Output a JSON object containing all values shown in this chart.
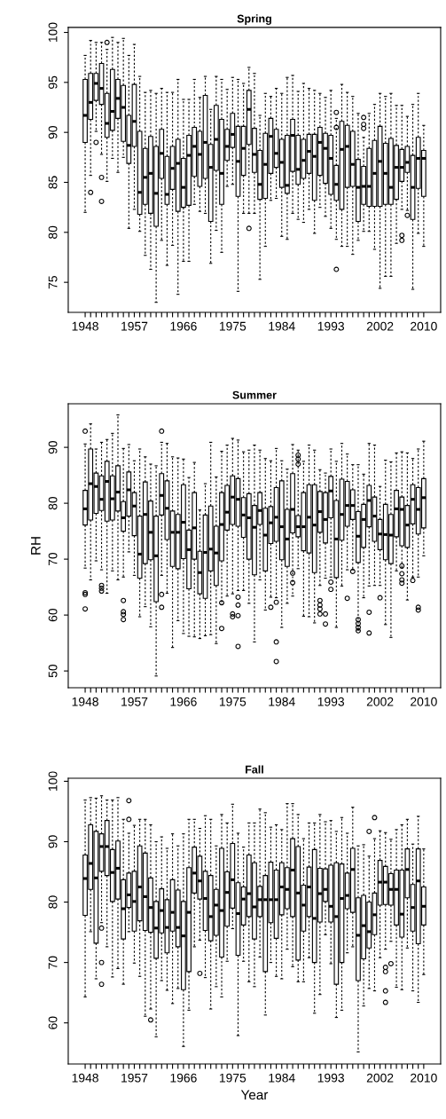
{
  "chart_data": [
    {
      "type": "box",
      "title": "Spring",
      "ylim": [
        72,
        100.5
      ],
      "yticks": [
        75,
        80,
        85,
        90,
        95,
        100
      ],
      "categories": [
        "1948",
        null,
        null,
        null,
        null,
        null,
        null,
        null,
        null,
        "1957",
        null,
        null,
        null,
        null,
        null,
        null,
        null,
        null,
        "1966",
        null,
        null,
        null,
        null,
        null,
        null,
        null,
        null,
        "1975",
        null,
        null,
        null,
        null,
        null,
        null,
        null,
        null,
        "1984",
        null,
        null,
        null,
        null,
        null,
        null,
        null,
        null,
        "1993",
        null,
        null,
        null,
        null,
        null,
        null,
        null,
        null,
        "2002",
        null,
        null,
        null,
        null,
        null,
        null,
        null,
        "2010"
      ],
      "boxes": [
        {
          "low": 82.0,
          "q1": 89.0,
          "median": 91.7,
          "q3": 95.3,
          "high": 97.7
        },
        {
          "low": 85.7,
          "q1": 91.3,
          "median": 93.0,
          "q3": 95.9,
          "high": 99.2,
          "outliers": [
            84.0
          ]
        },
        {
          "low": 90.1,
          "q1": 93.2,
          "median": 94.9,
          "q3": 95.9,
          "high": 99.0,
          "outliers": [
            89.0
          ]
        },
        {
          "low": 87.8,
          "q1": 92.8,
          "median": 94.4,
          "q3": 96.9,
          "high": 99.0,
          "outliers": [
            85.5,
            83.1
          ]
        },
        {
          "low": 85.1,
          "q1": 89.5,
          "median": 90.9,
          "q3": 93.9,
          "high": 98.3,
          "outliers": [
            99.0
          ]
        },
        {
          "low": 87.4,
          "q1": 90.2,
          "median": 92.1,
          "q3": 96.3,
          "high": 99.5
        },
        {
          "low": 86.0,
          "q1": 91.4,
          "median": 93.4,
          "q3": 95.3,
          "high": 99.0
        },
        {
          "low": 87.5,
          "q1": 89.1,
          "median": 92.5,
          "q3": 94.7,
          "high": 99.4
        },
        {
          "low": 80.4,
          "q1": 86.9,
          "median": 88.7,
          "q3": 91.7,
          "high": 97.7
        },
        {
          "low": 82.3,
          "q1": 88.6,
          "median": 91.1,
          "q3": 94.8,
          "high": 98.8
        },
        {
          "low": 80.1,
          "q1": 81.8,
          "median": 84.0,
          "q3": 90.1,
          "high": 95.6
        },
        {
          "low": 77.7,
          "q1": 82.8,
          "median": 85.5,
          "q3": 88.4,
          "high": 94.0
        },
        {
          "low": 76.3,
          "q1": 81.9,
          "median": 85.9,
          "q3": 89.6,
          "high": 94.2
        },
        {
          "low": 73.0,
          "q1": 80.6,
          "median": 83.9,
          "q3": 88.6,
          "high": 93.9
        },
        {
          "low": 79.2,
          "q1": 85.4,
          "median": 87.9,
          "q3": 90.3,
          "high": 94.4
        },
        {
          "low": 76.7,
          "q1": 82.8,
          "median": 83.8,
          "q3": 87.6,
          "high": 94.0
        },
        {
          "low": 78.7,
          "q1": 84.3,
          "median": 86.4,
          "q3": 88.6,
          "high": 94.0
        },
        {
          "low": 73.8,
          "q1": 82.1,
          "median": 86.9,
          "q3": 89.3,
          "high": 95.3
        },
        {
          "low": 77.1,
          "q1": 82.5,
          "median": 84.5,
          "q3": 87.4,
          "high": 93.3
        },
        {
          "low": 77.1,
          "q1": 82.7,
          "median": 87.7,
          "q3": 89.7,
          "high": 93.3
        },
        {
          "low": 82.8,
          "q1": 85.6,
          "median": 88.6,
          "q3": 90.5,
          "high": 95.3
        },
        {
          "low": 82.1,
          "q1": 84.6,
          "median": 87.8,
          "q3": 90.1,
          "high": 93.5
        },
        {
          "low": 81.9,
          "q1": 85.4,
          "median": 89.0,
          "q3": 93.7,
          "high": 95.6
        },
        {
          "low": 76.9,
          "q1": 81.1,
          "median": 86.5,
          "q3": 88.8,
          "high": 92.3
        },
        {
          "low": 80.2,
          "q1": 86.2,
          "median": 89.3,
          "q3": 92.7,
          "high": 95.6
        },
        {
          "low": 78.0,
          "q1": 82.8,
          "median": 85.9,
          "q3": 91.3,
          "high": 95.3
        },
        {
          "low": 84.6,
          "q1": 87.2,
          "median": 88.6,
          "q3": 90.3,
          "high": 94.3
        },
        {
          "low": 84.8,
          "q1": 88.5,
          "median": 89.8,
          "q3": 91.9,
          "high": 95.5
        },
        {
          "low": 74.1,
          "q1": 83.6,
          "median": 87.1,
          "q3": 90.6,
          "high": 95.3
        },
        {
          "low": 81.9,
          "q1": 85.7,
          "median": 88.4,
          "q3": 90.6,
          "high": 94.9
        },
        {
          "low": 81.9,
          "q1": 88.8,
          "median": 92.3,
          "q3": 94.2,
          "high": 96.5,
          "outliers": [
            80.4
          ]
        },
        {
          "low": 81.9,
          "q1": 86.0,
          "median": 87.8,
          "q3": 90.4,
          "high": 95.9
        },
        {
          "low": 75.3,
          "q1": 83.3,
          "median": 84.8,
          "q3": 88.2,
          "high": 91.7
        },
        {
          "low": 78.6,
          "q1": 83.4,
          "median": 86.8,
          "q3": 89.9,
          "high": 93.9
        },
        {
          "low": 83.2,
          "q1": 85.9,
          "median": 89.6,
          "q3": 91.4,
          "high": 93.6
        },
        {
          "low": 83.4,
          "q1": 86.5,
          "median": 87.9,
          "q3": 90.3,
          "high": 94.4
        },
        {
          "low": 79.6,
          "q1": 84.5,
          "median": 87.0,
          "q3": 89.3,
          "high": 93.9
        },
        {
          "low": 79.3,
          "q1": 83.9,
          "median": 84.7,
          "q3": 89.7,
          "high": 95.5
        },
        {
          "low": 81.9,
          "q1": 86.1,
          "median": 89.7,
          "q3": 91.3,
          "high": 95.7
        },
        {
          "low": 81.3,
          "q1": 84.8,
          "median": 86.3,
          "q3": 89.7,
          "high": 94.1
        },
        {
          "low": 81.0,
          "q1": 85.4,
          "median": 87.2,
          "q3": 89.3,
          "high": 94.9
        },
        {
          "low": 82.3,
          "q1": 85.9,
          "median": 88.1,
          "q3": 89.8,
          "high": 94.4
        },
        {
          "low": 79.9,
          "q1": 83.2,
          "median": 87.6,
          "q3": 89.8,
          "high": 94.2
        },
        {
          "low": 82.5,
          "q1": 85.7,
          "median": 89.0,
          "q3": 90.5,
          "high": 93.9
        },
        {
          "low": 81.6,
          "q1": 84.9,
          "median": 88.4,
          "q3": 89.9,
          "high": 93.5
        },
        {
          "low": 80.4,
          "q1": 83.8,
          "median": 87.4,
          "q3": 89.7,
          "high": 94.2
        },
        {
          "low": 79.3,
          "q1": 83.2,
          "median": 84.8,
          "q3": 86.7,
          "high": 91.4,
          "outliers": [
            92.0,
            90.5,
            76.3
          ]
        },
        {
          "low": 78.6,
          "q1": 82.3,
          "median": 88.3,
          "q3": 91.1,
          "high": 94.8
        },
        {
          "low": 78.6,
          "q1": 84.5,
          "median": 88.6,
          "q3": 90.7,
          "high": 94.0
        },
        {
          "low": 77.8,
          "q1": 84.6,
          "median": 86.8,
          "q3": 90.1,
          "high": 93.6
        },
        {
          "low": 79.2,
          "q1": 81.1,
          "median": 84.5,
          "q3": 87.3,
          "high": 91.9
        },
        {
          "low": 80.1,
          "q1": 82.8,
          "median": 84.6,
          "q3": 86.6,
          "high": 89.5,
          "outliers": [
            91.5,
            90.8,
            90.4
          ]
        },
        {
          "low": 80.1,
          "q1": 82.6,
          "median": 84.6,
          "q3": 88.4,
          "high": 91.9
        },
        {
          "low": 78.3,
          "q1": 82.6,
          "median": 85.9,
          "q3": 89.2,
          "high": 92.8
        },
        {
          "low": 74.4,
          "q1": 82.6,
          "median": 87.1,
          "q3": 90.6,
          "high": 93.9
        },
        {
          "low": 75.6,
          "q1": 82.8,
          "median": 85.9,
          "q3": 88.9,
          "high": 93.6
        },
        {
          "low": 75.6,
          "q1": 82.8,
          "median": 84.5,
          "q3": 89.4,
          "high": 93.9
        },
        {
          "low": 78.9,
          "q1": 83.3,
          "median": 86.5,
          "q3": 88.7,
          "high": 92.7
        },
        {
          "low": 82.3,
          "q1": 85.1,
          "median": 86.5,
          "q3": 88.3,
          "high": 92.7,
          "outliers": [
            79.7,
            79.2
          ]
        },
        {
          "low": 82.2,
          "q1": 86.0,
          "median": 87.0,
          "q3": 88.6,
          "high": 91.6,
          "outliers": [
            81.7
          ]
        },
        {
          "low": 74.3,
          "q1": 81.3,
          "median": 84.5,
          "q3": 87.7,
          "high": 92.8
        },
        {
          "low": 79.9,
          "q1": 84.4,
          "median": 87.4,
          "q3": 89.5,
          "high": 93.9
        },
        {
          "low": 78.6,
          "q1": 83.6,
          "median": 87.4,
          "q3": 88.2,
          "high": 90.7
        }
      ]
    },
    {
      "type": "box",
      "title": "Summer",
      "ylabel": "RH",
      "ylim": [
        47,
        97.8
      ],
      "yticks": [
        50,
        60,
        70,
        80,
        90
      ],
      "categories": [
        "1948",
        null,
        null,
        null,
        null,
        null,
        null,
        null,
        null,
        "1957",
        null,
        null,
        null,
        null,
        null,
        null,
        null,
        null,
        "1966",
        null,
        null,
        null,
        null,
        null,
        null,
        null,
        null,
        "1975",
        null,
        null,
        null,
        null,
        null,
        null,
        null,
        null,
        "1984",
        null,
        null,
        null,
        null,
        null,
        null,
        null,
        null,
        "1993",
        null,
        null,
        null,
        null,
        null,
        null,
        null,
        null,
        "2002",
        null,
        null,
        null,
        null,
        null,
        null,
        null,
        "2010"
      ],
      "boxes": [
        {
          "low": 68.4,
          "q1": 76.1,
          "median": 79.0,
          "q3": 82.3,
          "high": 90.6,
          "outliers": [
            92.9,
            64.0,
            63.7,
            61.1
          ]
        },
        {
          "low": 66.3,
          "q1": 77.0,
          "median": 83.5,
          "q3": 89.7,
          "high": 94.2
        },
        {
          "low": 69.7,
          "q1": 78.2,
          "median": 83.0,
          "q3": 85.4,
          "high": 89.7
        },
        {
          "low": 68.1,
          "q1": 78.7,
          "median": 80.7,
          "q3": 84.9,
          "high": 90.9,
          "outliers": [
            65.3,
            64.8,
            64.3
          ]
        },
        {
          "low": 63.9,
          "q1": 76.8,
          "median": 83.9,
          "q3": 87.5,
          "high": 91.4
        },
        {
          "low": 67.9,
          "q1": 77.0,
          "median": 80.8,
          "q3": 84.9,
          "high": 92.5
        },
        {
          "low": 66.3,
          "q1": 78.6,
          "median": 82.0,
          "q3": 86.7,
          "high": 95.8
        },
        {
          "low": 66.8,
          "q1": 75.0,
          "median": 77.4,
          "q3": 80.3,
          "high": 89.8,
          "outliers": [
            62.6,
            60.6,
            60.1,
            59.2
          ]
        },
        {
          "low": 71.3,
          "q1": 77.7,
          "median": 82.4,
          "q3": 85.6,
          "high": 90.5
        },
        {
          "low": 67.1,
          "q1": 74.2,
          "median": 79.5,
          "q3": 81.9,
          "high": 87.6
        },
        {
          "low": 59.7,
          "q1": 66.6,
          "median": 70.9,
          "q3": 77.7,
          "high": 89.7
        },
        {
          "low": 61.5,
          "q1": 69.2,
          "median": 78.0,
          "q3": 83.8,
          "high": 88.3
        },
        {
          "low": 57.9,
          "q1": 69.9,
          "median": 74.8,
          "q3": 80.4,
          "high": 87.0
        },
        {
          "low": 49.1,
          "q1": 62.4,
          "median": 70.6,
          "q3": 77.7,
          "high": 86.7
        },
        {
          "low": 67.1,
          "q1": 77.9,
          "median": 81.4,
          "q3": 85.3,
          "high": 90.9,
          "outliers": [
            92.9,
            63.7,
            61.4
          ]
        },
        {
          "low": 63.9,
          "q1": 73.5,
          "median": 79.1,
          "q3": 84.0,
          "high": 90.7
        },
        {
          "low": 54.2,
          "q1": 68.7,
          "median": 74.8,
          "q3": 78.6,
          "high": 88.3
        },
        {
          "low": 59.0,
          "q1": 68.3,
          "median": 74.8,
          "q3": 78.0,
          "high": 88.1
        },
        {
          "low": 56.7,
          "q1": 70.1,
          "median": 76.6,
          "q3": 83.3,
          "high": 87.9
        },
        {
          "low": 56.2,
          "q1": 64.7,
          "median": 71.7,
          "q3": 75.2,
          "high": 84.6
        },
        {
          "low": 56.1,
          "q1": 70.0,
          "median": 75.6,
          "q3": 81.9,
          "high": 87.3
        },
        {
          "low": 55.8,
          "q1": 63.8,
          "median": 67.6,
          "q3": 71.4,
          "high": 78.8
        },
        {
          "low": 56.3,
          "q1": 63.0,
          "median": 71.2,
          "q3": 77.9,
          "high": 83.5
        },
        {
          "low": 56.5,
          "q1": 67.9,
          "median": 71.8,
          "q3": 79.5,
          "high": 90.9
        },
        {
          "low": 54.9,
          "q1": 65.3,
          "median": 71.1,
          "q3": 75.9,
          "high": 84.7
        },
        {
          "low": 61.9,
          "q1": 69.7,
          "median": 76.2,
          "q3": 81.9,
          "high": 89.3,
          "outliers": [
            62.2,
            57.6
          ]
        },
        {
          "low": 63.4,
          "q1": 75.2,
          "median": 78.4,
          "q3": 83.2,
          "high": 90.4
        },
        {
          "low": 63.8,
          "q1": 76.2,
          "median": 81.1,
          "q3": 84.9,
          "high": 91.6,
          "outliers": [
            60.2,
            59.7
          ]
        },
        {
          "low": 64.4,
          "q1": 75.9,
          "median": 80.7,
          "q3": 84.4,
          "high": 91.3,
          "outliers": [
            63.2,
            61.8,
            59.9,
            54.4
          ]
        },
        {
          "low": 64.4,
          "q1": 73.9,
          "median": 77.9,
          "q3": 81.0,
          "high": 89.2
        },
        {
          "low": 62.1,
          "q1": 70.0,
          "median": 77.4,
          "q3": 81.7,
          "high": 89.5
        },
        {
          "low": 55.2,
          "q1": 67.2,
          "median": 75.7,
          "q3": 79.6,
          "high": 90.4
        },
        {
          "low": 66.3,
          "q1": 76.2,
          "median": 78.7,
          "q3": 81.9,
          "high": 89.5
        },
        {
          "low": 60.9,
          "q1": 67.9,
          "median": 74.3,
          "q3": 79.1,
          "high": 88.0
        },
        {
          "low": 63.2,
          "q1": 72.8,
          "median": 76.5,
          "q3": 79.4,
          "high": 87.6,
          "outliers": [
            61.4
          ]
        },
        {
          "low": 63.1,
          "q1": 73.2,
          "median": 77.5,
          "q3": 82.8,
          "high": 89.8,
          "outliers": [
            62.3,
            55.2,
            51.7
          ]
        },
        {
          "low": 57.8,
          "q1": 69.9,
          "median": 75.8,
          "q3": 84.0,
          "high": 87.6
        },
        {
          "low": 62.1,
          "q1": 68.7,
          "median": 73.6,
          "q3": 78.9,
          "high": 86.1
        },
        {
          "low": 63.4,
          "q1": 74.7,
          "median": 78.9,
          "q3": 85.3,
          "high": 90.5,
          "outliers": [
            67.5,
            65.8
          ]
        },
        {
          "low": 68.3,
          "q1": 74.0,
          "median": 75.8,
          "q3": 77.8,
          "high": 89.5,
          "outliers": [
            88.6,
            87.9,
            87.0
          ]
        },
        {
          "low": 59.8,
          "q1": 71.5,
          "median": 75.8,
          "q3": 81.9,
          "high": 87.5
        },
        {
          "low": 59.7,
          "q1": 71.1,
          "median": 77.5,
          "q3": 83.3,
          "high": 90.4
        },
        {
          "low": 58.6,
          "q1": 67.6,
          "median": 76.1,
          "q3": 83.3,
          "high": 89.5
        },
        {
          "low": 65.3,
          "q1": 74.8,
          "median": 78.5,
          "q3": 82.1,
          "high": 86.0,
          "outliers": [
            62.6,
            61.8,
            61.1,
            60.2
          ]
        },
        {
          "low": 66.6,
          "q1": 72.9,
          "median": 77.1,
          "q3": 81.9,
          "high": 85.4,
          "outliers": [
            60.2,
            58.4
          ]
        },
        {
          "low": 66.8,
          "q1": 77.4,
          "median": 82.2,
          "q3": 84.8,
          "high": 89.7,
          "outliers": [
            65.9,
            64.6
          ]
        },
        {
          "low": 57.8,
          "q1": 66.7,
          "median": 73.6,
          "q3": 80.5,
          "high": 87.5
        },
        {
          "low": 65.2,
          "q1": 73.4,
          "median": 78.0,
          "q3": 84.3,
          "high": 90.7
        },
        {
          "low": 68.1,
          "q1": 75.9,
          "median": 79.6,
          "q3": 83.9,
          "high": 88.8,
          "outliers": [
            63.0
          ]
        },
        {
          "low": 68.1,
          "q1": 77.1,
          "median": 79.6,
          "q3": 82.4,
          "high": 86.9,
          "outliers": [
            67.8
          ]
        },
        {
          "low": 57.3,
          "q1": 69.4,
          "median": 74.1,
          "q3": 78.5,
          "high": 86.9,
          "outliers": [
            59.2,
            58.5,
            57.8,
            57.2
          ]
        },
        {
          "low": 63.1,
          "q1": 72.1,
          "median": 77.1,
          "q3": 79.8,
          "high": 85.2
        },
        {
          "low": 65.2,
          "q1": 75.8,
          "median": 80.5,
          "q3": 83.2,
          "high": 90.7,
          "outliers": [
            60.5,
            56.8
          ]
        },
        {
          "low": 65.3,
          "q1": 73.2,
          "median": 77.7,
          "q3": 81.1,
          "high": 90.4
        },
        {
          "low": 65.3,
          "q1": 71.7,
          "median": 74.5,
          "q3": 77.1,
          "high": 83.0,
          "outliers": [
            63.1
          ]
        },
        {
          "low": 58.3,
          "q1": 69.9,
          "median": 74.4,
          "q3": 79.8,
          "high": 87.7
        },
        {
          "low": 56.0,
          "q1": 69.2,
          "median": 74.3,
          "q3": 78.0,
          "high": 87.4
        },
        {
          "low": 67.9,
          "q1": 74.0,
          "median": 79.0,
          "q3": 82.3,
          "high": 89.0
        },
        {
          "low": 68.4,
          "q1": 72.4,
          "median": 78.9,
          "q3": 81.1,
          "high": 89.2,
          "outliers": [
            68.8,
            67.4,
            66.3,
            65.7
          ]
        },
        {
          "low": 62.7,
          "q1": 72.1,
          "median": 76.1,
          "q3": 79.6,
          "high": 89.0
        },
        {
          "low": 66.8,
          "q1": 76.3,
          "median": 80.7,
          "q3": 83.3,
          "high": 88.0,
          "outliers": [
            66.2
          ]
        },
        {
          "low": 66.8,
          "q1": 74.5,
          "median": 78.9,
          "q3": 82.8,
          "high": 89.7,
          "outliers": [
            61.4,
            60.9
          ]
        },
        {
          "low": 70.6,
          "q1": 75.6,
          "median": 81.0,
          "q3": 84.4,
          "high": 91.1
        }
      ]
    },
    {
      "type": "box",
      "title": "Fall",
      "xlabel": "Year",
      "ylim": [
        53.2,
        100.5
      ],
      "yticks": [
        60,
        70,
        80,
        90,
        100
      ],
      "categories": [
        "1948",
        null,
        null,
        null,
        null,
        null,
        null,
        null,
        null,
        "1957",
        null,
        null,
        null,
        null,
        null,
        null,
        null,
        null,
        "1966",
        null,
        null,
        null,
        null,
        null,
        null,
        null,
        null,
        "1975",
        null,
        null,
        null,
        null,
        null,
        null,
        null,
        null,
        "1984",
        null,
        null,
        null,
        null,
        null,
        null,
        null,
        null,
        "1993",
        null,
        null,
        null,
        null,
        null,
        null,
        null,
        null,
        "2002",
        null,
        null,
        null,
        null,
        null,
        null,
        null,
        "2010"
      ],
      "boxes": [
        {
          "low": 64.3,
          "q1": 77.8,
          "median": 83.9,
          "q3": 87.8,
          "high": 96.9
        },
        {
          "low": 75.1,
          "q1": 82.1,
          "median": 86.4,
          "q3": 92.8,
          "high": 97.3
        },
        {
          "low": 67.3,
          "q1": 73.2,
          "median": 84.0,
          "q3": 91.7,
          "high": 97.2
        },
        {
          "low": 76.6,
          "q1": 85.1,
          "median": 89.2,
          "q3": 91.3,
          "high": 97.6,
          "outliers": [
            75.7,
            70.0,
            66.4
          ]
        },
        {
          "low": 72.6,
          "q1": 84.4,
          "median": 89.2,
          "q3": 93.5,
          "high": 96.9
        },
        {
          "low": 67.6,
          "q1": 80.1,
          "median": 84.9,
          "q3": 88.7,
          "high": 96.9
        },
        {
          "low": 69.0,
          "q1": 80.5,
          "median": 85.6,
          "q3": 90.1,
          "high": 97.3
        },
        {
          "low": 66.4,
          "q1": 73.9,
          "median": 78.9,
          "q3": 83.7,
          "high": 93.7
        },
        {
          "low": 75.1,
          "q1": 79.1,
          "median": 81.2,
          "q3": 84.8,
          "high": 91.4,
          "outliers": [
            96.8,
            93.7
          ]
        },
        {
          "low": 69.9,
          "q1": 75.2,
          "median": 80.1,
          "q3": 85.1,
          "high": 92.7
        },
        {
          "low": 67.7,
          "q1": 76.9,
          "median": 82.5,
          "q3": 89.3,
          "high": 93.7
        },
        {
          "low": 61.1,
          "q1": 75.3,
          "median": 80.9,
          "q3": 88.1,
          "high": 93.7
        },
        {
          "low": 62.3,
          "q1": 75.0,
          "median": 79.1,
          "q3": 84.0,
          "high": 92.8,
          "outliers": [
            60.5
          ]
        },
        {
          "low": 57.7,
          "q1": 70.7,
          "median": 75.7,
          "q3": 80.1,
          "high": 90.0
        },
        {
          "low": 67.0,
          "q1": 74.9,
          "median": 78.6,
          "q3": 82.2,
          "high": 90.8
        },
        {
          "low": 65.4,
          "q1": 71.6,
          "median": 75.8,
          "q3": 80.4,
          "high": 88.9
        },
        {
          "low": 63.2,
          "q1": 75.2,
          "median": 78.3,
          "q3": 83.7,
          "high": 91.3
        },
        {
          "low": 65.7,
          "q1": 72.6,
          "median": 75.8,
          "q3": 82.0,
          "high": 89.3
        },
        {
          "low": 56.1,
          "q1": 65.5,
          "median": 74.4,
          "q3": 80.1,
          "high": 91.3
        },
        {
          "low": 62.1,
          "q1": 68.5,
          "median": 78.3,
          "q3": 85.7,
          "high": 93.7
        },
        {
          "low": 72.6,
          "q1": 81.5,
          "median": 84.8,
          "q3": 89.1,
          "high": 93.7
        },
        {
          "low": 73.7,
          "q1": 80.5,
          "median": 83.5,
          "q3": 87.6,
          "high": 92.2,
          "outliers": [
            68.2
          ]
        },
        {
          "low": 67.5,
          "q1": 75.3,
          "median": 80.6,
          "q3": 85.1,
          "high": 94.3
        },
        {
          "low": 62.3,
          "q1": 73.6,
          "median": 77.6,
          "q3": 84.4,
          "high": 93.7
        },
        {
          "low": 66.0,
          "q1": 74.5,
          "median": 79.5,
          "q3": 82.1,
          "high": 89.3
        },
        {
          "low": 64.3,
          "q1": 70.9,
          "median": 78.6,
          "q3": 88.9,
          "high": 94.5
        },
        {
          "low": 70.2,
          "q1": 76.0,
          "median": 81.6,
          "q3": 85.0,
          "high": 93.1
        },
        {
          "low": 75.6,
          "q1": 79.0,
          "median": 83.7,
          "q3": 89.7,
          "high": 96.2
        },
        {
          "low": 57.9,
          "q1": 71.2,
          "median": 78.1,
          "q3": 83.2,
          "high": 91.4
        },
        {
          "low": 70.2,
          "q1": 76.2,
          "median": 80.5,
          "q3": 82.5,
          "high": 89.1
        },
        {
          "low": 66.8,
          "q1": 77.6,
          "median": 81.4,
          "q3": 87.8,
          "high": 93.1
        },
        {
          "low": 66.0,
          "q1": 73.9,
          "median": 79.2,
          "q3": 86.5,
          "high": 93.1
        },
        {
          "low": 70.9,
          "q1": 77.6,
          "median": 80.4,
          "q3": 82.6,
          "high": 95.4
        },
        {
          "low": 61.3,
          "q1": 68.5,
          "median": 80.4,
          "q3": 84.4,
          "high": 94.8
        },
        {
          "low": 70.0,
          "q1": 76.6,
          "median": 80.4,
          "q3": 86.6,
          "high": 92.4
        },
        {
          "low": 67.7,
          "q1": 74.0,
          "median": 80.4,
          "q3": 85.3,
          "high": 92.8
        },
        {
          "low": 67.3,
          "q1": 77.9,
          "median": 82.5,
          "q3": 86.5,
          "high": 92.0
        },
        {
          "low": 72.2,
          "q1": 78.9,
          "median": 82.1,
          "q3": 85.7,
          "high": 96.3
        },
        {
          "low": 69.3,
          "q1": 77.6,
          "median": 85.3,
          "q3": 90.5,
          "high": 96.3
        },
        {
          "low": 66.8,
          "q1": 70.4,
          "median": 81.5,
          "q3": 89.2,
          "high": 94.5
        },
        {
          "low": 66.8,
          "q1": 75.2,
          "median": 79.5,
          "q3": 82.8,
          "high": 90.5
        },
        {
          "low": 70.8,
          "q1": 77.6,
          "median": 82.5,
          "q3": 85.8,
          "high": 93.1
        },
        {
          "low": 61.6,
          "q1": 70.0,
          "median": 77.3,
          "q3": 88.7,
          "high": 93.1
        },
        {
          "low": 64.7,
          "q1": 76.7,
          "median": 81.4,
          "q3": 85.6,
          "high": 94.5
        },
        {
          "low": 74.6,
          "q1": 80.1,
          "median": 82.1,
          "q3": 85.5,
          "high": 93.3
        },
        {
          "low": 69.8,
          "q1": 76.7,
          "median": 79.3,
          "q3": 86.1,
          "high": 93.5
        },
        {
          "low": 60.9,
          "q1": 66.4,
          "median": 77.6,
          "q3": 86.5,
          "high": 91.7
        },
        {
          "low": 62.1,
          "q1": 70.0,
          "median": 80.6,
          "q3": 86.3,
          "high": 94.0
        },
        {
          "low": 71.6,
          "q1": 78.9,
          "median": 81.1,
          "q3": 84.8,
          "high": 91.4
        },
        {
          "low": 72.6,
          "q1": 78.3,
          "median": 85.4,
          "q3": 88.9,
          "high": 95.7
        },
        {
          "low": 55.2,
          "q1": 67.0,
          "median": 74.5,
          "q3": 80.7,
          "high": 89.3
        },
        {
          "low": 62.8,
          "q1": 70.6,
          "median": 76.1,
          "q3": 81.1,
          "high": 89.5
        },
        {
          "low": 65.7,
          "q1": 72.4,
          "median": 75.1,
          "q3": 80.0,
          "high": 87.6,
          "outliers": [
            91.7
          ]
        },
        {
          "low": 65.3,
          "q1": 74.6,
          "median": 77.9,
          "q3": 81.5,
          "high": 90.5,
          "outliers": [
            94.0
          ]
        },
        {
          "low": 70.8,
          "q1": 79.5,
          "median": 83.3,
          "q3": 86.9,
          "high": 91.8
        },
        {
          "low": 72.2,
          "q1": 79.6,
          "median": 83.3,
          "q3": 85.9,
          "high": 91.5,
          "outliers": [
            69.2,
            68.5,
            65.3,
            63.4
          ]
        },
        {
          "low": 73.5,
          "q1": 79.5,
          "median": 82.1,
          "q3": 84.7,
          "high": 90.4,
          "outliers": [
            69.8
          ]
        },
        {
          "low": 65.9,
          "q1": 76.2,
          "median": 82.1,
          "q3": 85.3,
          "high": 92.0
        },
        {
          "low": 65.5,
          "q1": 74.2,
          "median": 78.0,
          "q3": 85.3,
          "high": 92.8
        },
        {
          "low": 72.4,
          "q1": 80.7,
          "median": 85.4,
          "q3": 88.8,
          "high": 93.7
        },
        {
          "low": 65.3,
          "q1": 75.2,
          "median": 79.1,
          "q3": 82.9,
          "high": 89.6
        },
        {
          "low": 63.4,
          "q1": 73.1,
          "median": 83.5,
          "q3": 88.8,
          "high": 94.2
        },
        {
          "low": 68.0,
          "q1": 76.2,
          "median": 79.3,
          "q3": 82.5,
          "high": 88.8
        }
      ]
    }
  ]
}
